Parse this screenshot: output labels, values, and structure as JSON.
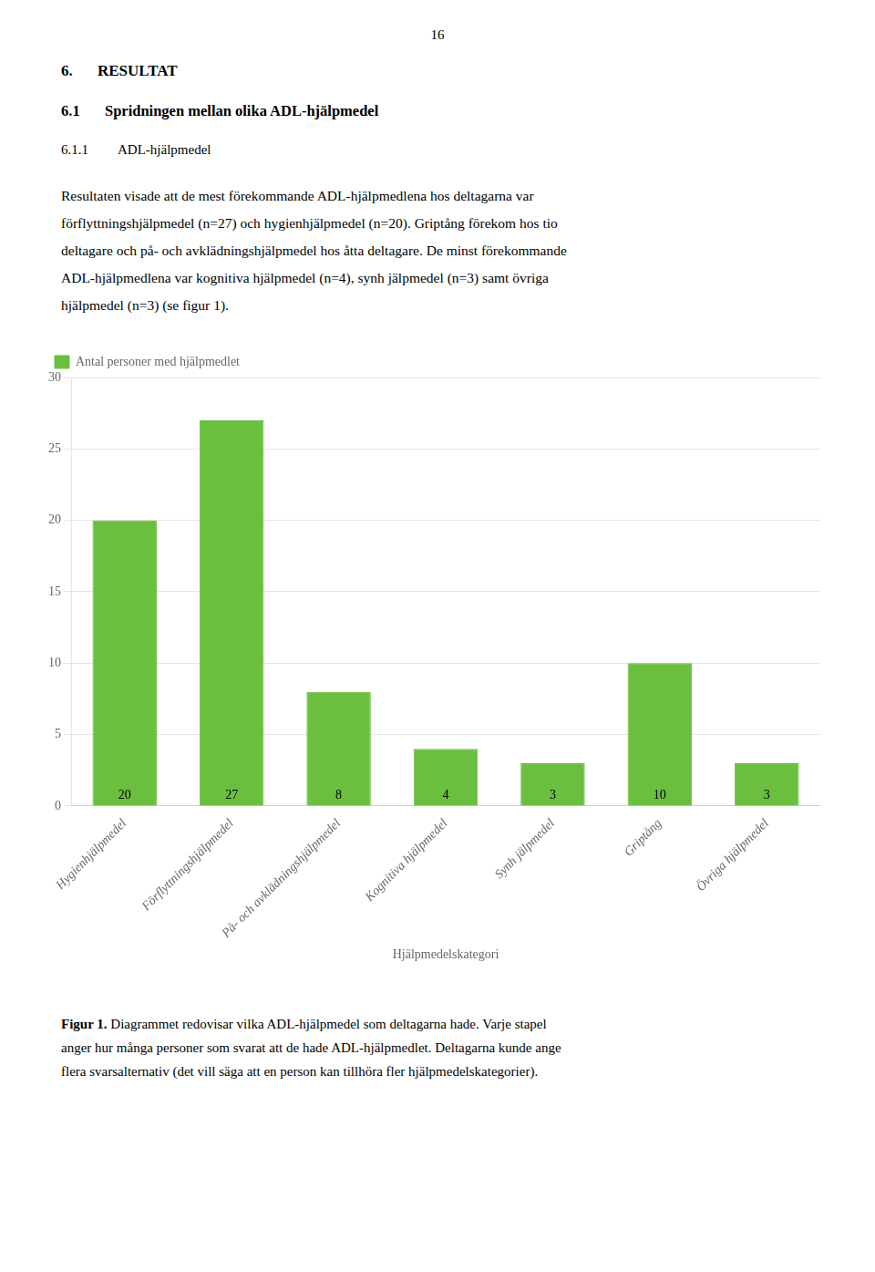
{
  "page_number": "16",
  "headings": [
    {
      "number": "6.",
      "text": "RESULTAT"
    },
    {
      "number": "6.1",
      "text": "Spridningen mellan olika ADL-hjälpmedel"
    },
    {
      "number": "6.1.1",
      "text": "ADL-hjälpmedel"
    }
  ],
  "body_lines": [
    "Resultaten visade att de mest förekommande ADL-hjälpmedlena hos deltagarna var",
    "förflyttningshjälpmedel (n=27) och hygienhjälpmedel (n=20). Griptång förekom hos tio",
    "deltagare och på- och avklädningshjälpmedel hos åtta deltagare. De minst förekommande",
    "ADL-hjälpmedlena var kognitiva hjälpmedel (n=4), synh jälpmedel (n=3) samt övriga",
    "hjälpmedel (n=3) (se figur 1)."
  ],
  "caption_label": "Figur 1.",
  "caption_lines": [
    "Diagrammet redovisar vilka ADL-hjälpmedel som deltagarna hade. Varje stapel",
    "anger hur många personer som svarat att de hade ADL-hjälpmedlet. Deltagarna kunde ange",
    "flera svarsalternativ (det vill säga att en person kan tillhöra fler hjälpmedelskategorier)."
  ],
  "chart_data": {
    "type": "bar",
    "x_label": "Hjälpmedelskategori",
    "categories": [
      "Hygienhjälpmedel",
      "Förflyttningshjälpmedel",
      "På- och avklädningshjälpmedel",
      "Kognitiva hjälpmedel",
      "Synh jälpmedel",
      "Griptång",
      "Övriga hjälpmedel"
    ],
    "series": [
      {
        "name": "Antal personer med hjälpmedlet",
        "color": "#6abf3f",
        "values": [
          20,
          27,
          8,
          4,
          3,
          10,
          3
        ]
      }
    ],
    "ylim": [
      0,
      30
    ],
    "yticks": [
      0,
      5,
      10,
      15,
      20,
      25,
      30
    ],
    "grid": true,
    "legend": "upper left",
    "data_labels": true
  }
}
